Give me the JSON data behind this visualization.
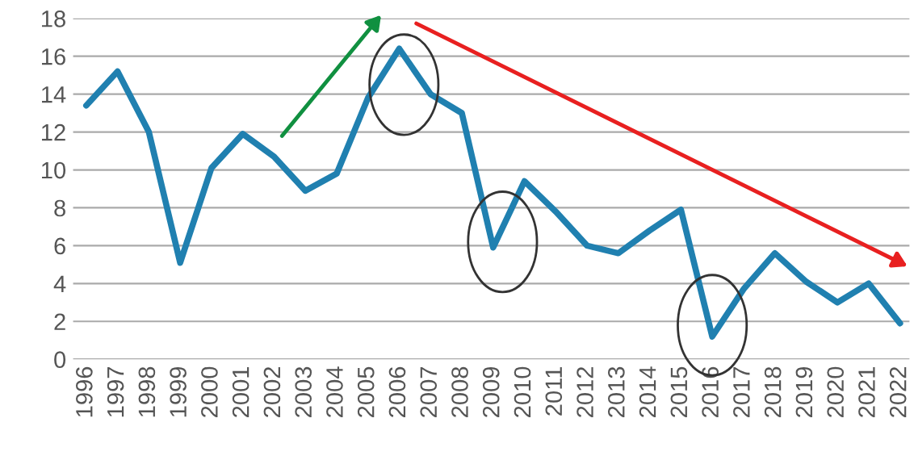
{
  "chart_data": {
    "type": "line",
    "categories": [
      "1996",
      "1997",
      "1998",
      "1999",
      "2000",
      "2001",
      "2002",
      "2003",
      "2004",
      "2005",
      "2006",
      "2007",
      "2008",
      "2009",
      "2010",
      "2011",
      "2012",
      "2013",
      "2014",
      "2015",
      "2016",
      "2017",
      "2018",
      "2019",
      "2020",
      "2021",
      "2022"
    ],
    "series": [
      {
        "color": "#2080b0",
        "values": [
          13.4,
          15.2,
          12.0,
          5.1,
          10.1,
          11.9,
          10.7,
          8.9,
          9.8,
          13.8,
          16.4,
          14.0,
          13.0,
          5.9,
          9.4,
          7.8,
          6.0,
          5.6,
          6.8,
          7.9,
          1.2,
          3.7,
          5.6,
          4.1,
          3.0,
          4.0,
          1.9
        ]
      }
    ],
    "ylim": [
      0,
      18
    ],
    "yticks": [
      0,
      2,
      4,
      6,
      8,
      10,
      12,
      14,
      16,
      18
    ],
    "grid": "y",
    "marker": "none",
    "line_style": "solid"
  }
}
